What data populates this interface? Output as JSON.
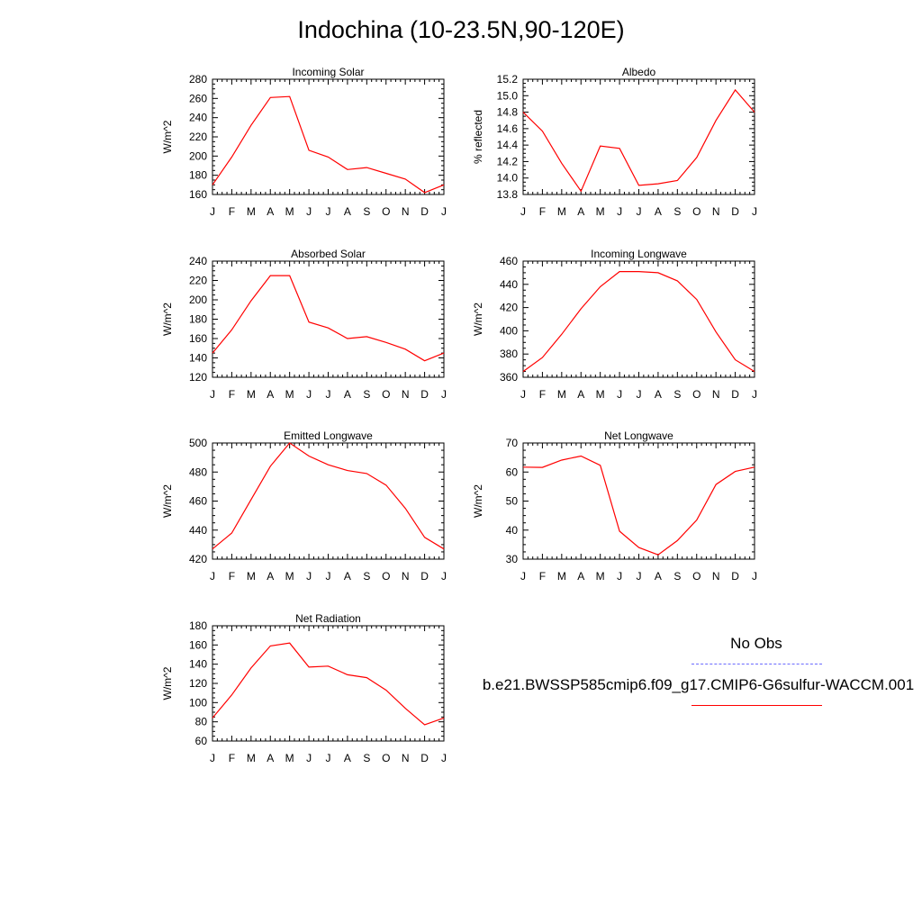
{
  "title": "Indochina (10-23.5N,90-120E)",
  "legend": {
    "obs_label": "No Obs",
    "obs_color": "#6a6aff",
    "case_label": "b.e21.BWSSP585cmip6.f09_g17.CMIP6-G6sulfur-WACCM.001",
    "case_color": "#ff0000"
  },
  "chart_data": [
    {
      "type": "line",
      "title": "Incoming Solar",
      "ylabel": "W/m^2",
      "categories": [
        "J",
        "F",
        "M",
        "A",
        "M",
        "J",
        "J",
        "A",
        "S",
        "O",
        "N",
        "D",
        "J"
      ],
      "ylim": [
        160,
        280
      ],
      "yticks": [
        160,
        180,
        200,
        220,
        240,
        260,
        280
      ],
      "series": [
        {
          "values": [
            170,
            199,
            232,
            261,
            262,
            206,
            199,
            186,
            188,
            182,
            176,
            162,
            170
          ]
        }
      ]
    },
    {
      "type": "line",
      "title": "Albedo",
      "ylabel": "% reflected",
      "categories": [
        "J",
        "F",
        "M",
        "A",
        "M",
        "J",
        "J",
        "A",
        "S",
        "O",
        "N",
        "D",
        "J"
      ],
      "ylim": [
        13.8,
        15.2
      ],
      "yticks": [
        "13.8",
        "14.0",
        "14.2",
        "14.4",
        "14.6",
        "14.8",
        "15.0",
        "15.2"
      ],
      "series": [
        {
          "values": [
            14.8,
            14.57,
            14.18,
            13.84,
            14.39,
            14.36,
            13.91,
            13.93,
            13.97,
            14.25,
            14.7,
            15.07,
            14.8
          ]
        }
      ]
    },
    {
      "type": "line",
      "title": "Absorbed Solar",
      "ylabel": "W/m^2",
      "categories": [
        "J",
        "F",
        "M",
        "A",
        "M",
        "J",
        "J",
        "A",
        "S",
        "O",
        "N",
        "D",
        "J"
      ],
      "ylim": [
        120,
        240
      ],
      "yticks": [
        120,
        140,
        160,
        180,
        200,
        220,
        240
      ],
      "series": [
        {
          "values": [
            145,
            169,
            199,
            225,
            225,
            177,
            171,
            160,
            162,
            156,
            149,
            137,
            145
          ]
        }
      ]
    },
    {
      "type": "line",
      "title": "Incoming Longwave",
      "ylabel": "W/m^2",
      "categories": [
        "J",
        "F",
        "M",
        "A",
        "M",
        "J",
        "J",
        "A",
        "S",
        "O",
        "N",
        "D",
        "J"
      ],
      "ylim": [
        360,
        460
      ],
      "yticks": [
        360,
        380,
        400,
        420,
        440,
        460
      ],
      "series": [
        {
          "values": [
            365,
            377,
            397,
            419,
            438,
            451,
            451,
            450,
            443,
            427,
            399,
            375,
            365
          ]
        }
      ]
    },
    {
      "type": "line",
      "title": "Emitted Longwave",
      "ylabel": "W/m^2",
      "categories": [
        "J",
        "F",
        "M",
        "A",
        "M",
        "J",
        "J",
        "A",
        "S",
        "O",
        "N",
        "D",
        "J"
      ],
      "ylim": [
        420,
        500
      ],
      "yticks": [
        420,
        440,
        460,
        480,
        500
      ],
      "series": [
        {
          "values": [
            427,
            438,
            461,
            484,
            500,
            491,
            485,
            481,
            479,
            471,
            455,
            435,
            427
          ]
        }
      ]
    },
    {
      "type": "line",
      "title": "Net Longwave",
      "ylabel": "W/m^2",
      "categories": [
        "J",
        "F",
        "M",
        "A",
        "M",
        "J",
        "J",
        "A",
        "S",
        "O",
        "N",
        "D",
        "J"
      ],
      "ylim": [
        30,
        70
      ],
      "yticks": [
        30,
        40,
        50,
        60,
        70
      ],
      "series": [
        {
          "values": [
            61.7,
            61.6,
            64.1,
            65.5,
            62.3,
            39.6,
            34.0,
            31.5,
            36.4,
            43.5,
            55.7,
            60.2,
            61.7
          ]
        }
      ]
    },
    {
      "type": "line",
      "title": "Net Radiation",
      "ylabel": "W/m^2",
      "categories": [
        "J",
        "F",
        "M",
        "A",
        "M",
        "J",
        "J",
        "A",
        "S",
        "O",
        "N",
        "D",
        "J"
      ],
      "ylim": [
        60,
        180
      ],
      "yticks": [
        60,
        80,
        100,
        120,
        140,
        160,
        180
      ],
      "series": [
        {
          "values": [
            84,
            108,
            136,
            159,
            162,
            137,
            138,
            129,
            126,
            113,
            94,
            77,
            84
          ]
        }
      ]
    }
  ]
}
